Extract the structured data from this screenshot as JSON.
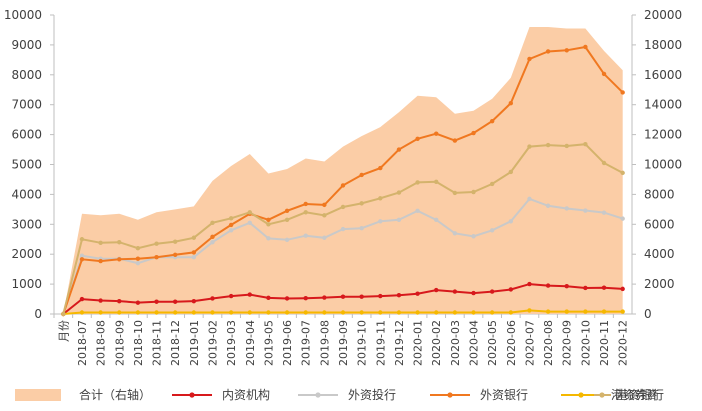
{
  "chart_data": {
    "type": "line",
    "title": "",
    "xlabel": "",
    "y_left": {
      "min": 0,
      "max": 10000,
      "step": 1000
    },
    "y_right": {
      "min": 0,
      "max": 20000,
      "step": 2000
    },
    "categories": [
      "月份",
      "2018-07",
      "2018-08",
      "2018-09",
      "2018-10",
      "2018-11",
      "2018-12",
      "2019-01",
      "2019-02",
      "2019-03",
      "2019-04",
      "2019-05",
      "2019-06",
      "2019-07",
      "2019-08",
      "2019-09",
      "2019-10",
      "2019-11",
      "2019-12",
      "2020-01",
      "2020-02",
      "2020-03",
      "2020-04",
      "2020-05",
      "2020-06",
      "2020-07",
      "2020-08",
      "2020-09",
      "2020-10",
      "2020-11",
      "2020-12"
    ],
    "series": [
      {
        "name": "合计（右轴）",
        "kind": "area",
        "axis": "right",
        "color": "#fbcda6",
        "values": [
          0,
          6700,
          6600,
          6700,
          6300,
          6800,
          7000,
          7200,
          8900,
          9900,
          10700,
          9400,
          9700,
          10400,
          10200,
          11200,
          11900,
          12500,
          13500,
          14600,
          14500,
          13400,
          13600,
          14400,
          15800,
          19200,
          19200,
          19100,
          19100,
          17600,
          16300
        ]
      },
      {
        "name": "内资机构",
        "kind": "line",
        "axis": "left",
        "color": "#d7191c",
        "values": [
          0,
          500,
          450,
          430,
          380,
          410,
          410,
          430,
          520,
          600,
          650,
          540,
          520,
          530,
          550,
          580,
          580,
          600,
          630,
          680,
          800,
          750,
          700,
          750,
          820,
          1000,
          950,
          930,
          870,
          880,
          840
        ]
      },
      {
        "name": "外资投行",
        "kind": "line",
        "axis": "left",
        "color": "#c9c9c9",
        "values": [
          0,
          1950,
          1850,
          1850,
          1700,
          1900,
          1900,
          1900,
          2400,
          2800,
          3050,
          2530,
          2480,
          2620,
          2550,
          2840,
          2870,
          3100,
          3150,
          3450,
          3150,
          2700,
          2600,
          2800,
          3100,
          3850,
          3620,
          3530,
          3460,
          3390,
          3190
        ]
      },
      {
        "name": "外资银行",
        "kind": "line",
        "axis": "left",
        "color": "#f07820",
        "values": [
          0,
          1830,
          1770,
          1830,
          1850,
          1900,
          1980,
          2060,
          2580,
          2980,
          3350,
          3150,
          3450,
          3680,
          3650,
          4300,
          4650,
          4880,
          5500,
          5860,
          6030,
          5800,
          6050,
          6450,
          7050,
          8530,
          8780,
          8820,
          8930,
          8030,
          7410
        ]
      },
      {
        "name": "港资券商",
        "kind": "line",
        "axis": "left",
        "color": "#f5b800",
        "values": [
          0,
          50,
          50,
          50,
          50,
          50,
          50,
          50,
          50,
          50,
          50,
          50,
          50,
          50,
          50,
          50,
          50,
          50,
          50,
          50,
          50,
          50,
          50,
          50,
          50,
          120,
          80,
          80,
          80,
          80,
          80
        ]
      },
      {
        "name": "港资银行",
        "kind": "line",
        "axis": "left",
        "color": "#d4b36c",
        "values": [
          0,
          2500,
          2380,
          2400,
          2200,
          2350,
          2420,
          2550,
          3050,
          3200,
          3400,
          3000,
          3150,
          3400,
          3300,
          3580,
          3700,
          3870,
          4060,
          4400,
          4420,
          4050,
          4080,
          4350,
          4750,
          5600,
          5650,
          5620,
          5680,
          5050,
          4720
        ]
      }
    ]
  }
}
